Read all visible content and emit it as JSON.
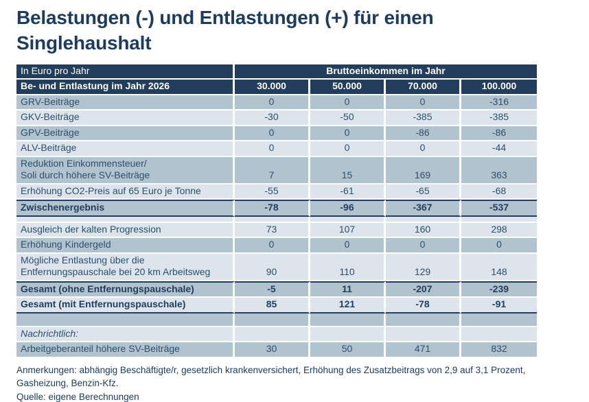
{
  "page": {
    "title": "Belastungen (-) und Entlastungen (+) für einen Singlehaushalt",
    "notes": "Anmerkungen: abhängig Beschäftigte/r, gesetzlich krankenversichert, Erhöhung des Zusatzbeitrags von 2,9 auf 3,1 Prozent, Gasheizung, Benzin-Kfz.",
    "source": "Quelle: eigene Berechnungen"
  },
  "colors": {
    "header_navy": "#223e5c",
    "row_dark": "#b2c3d0",
    "row_light": "#dde4ec",
    "title_text": "#1c3b5e",
    "body_text": "#2c4f6b"
  },
  "chart_data": {
    "type": "table",
    "unit_label": "In Euro pro Jahr",
    "group_header": "Bruttoeinkommen im Jahr",
    "row_header": "Be- und Entlastung im Jahr 2026",
    "columns": [
      "30.000",
      "50.000",
      "70.000",
      "100.000"
    ],
    "rows": [
      {
        "label": "GRV-Beiträge",
        "values": [
          "0",
          "0",
          "0",
          "-316"
        ],
        "shade": "dark"
      },
      {
        "label": "GKV-Beiträge",
        "values": [
          "-30",
          "-50",
          "-385",
          "-385"
        ],
        "shade": "light"
      },
      {
        "label": "GPV-Beiträge",
        "values": [
          "0",
          "0",
          "-86",
          "-86"
        ],
        "shade": "dark"
      },
      {
        "label": "ALV-Beiträge",
        "values": [
          "0",
          "0",
          "0",
          "-44"
        ],
        "shade": "light"
      },
      {
        "label": "Reduktion Einkommensteuer/\nSoli durch höhere SV-Beiträge",
        "values": [
          "7",
          "15",
          "169",
          "363"
        ],
        "shade": "dark"
      },
      {
        "label": "Erhöhung CO2-Preis auf 65 Euro je Tonne",
        "values": [
          "-55",
          "-61",
          "-65",
          "-68"
        ],
        "shade": "light"
      },
      {
        "label": "Zwischenergebnis",
        "values": [
          "-78",
          "-96",
          "-367",
          "-537"
        ],
        "shade": "dark",
        "bold": true,
        "border_top": true,
        "border_bottom": true
      },
      {
        "spacer": true,
        "shade": "light",
        "height": 9
      },
      {
        "label": "Ausgleich der kalten Progression",
        "values": [
          "73",
          "107",
          "160",
          "298"
        ],
        "shade": "light"
      },
      {
        "label": "Erhöhung Kindergeld",
        "values": [
          "0",
          "0",
          "0",
          "0"
        ],
        "shade": "dark"
      },
      {
        "label": "Mögliche Entlastung über die\nEntfernungspauschale bei 20 km Arbeitsweg",
        "values": [
          "90",
          "110",
          "129",
          "148"
        ],
        "shade": "light"
      },
      {
        "label": "Gesamt (ohne Entfernungspauschale)",
        "values": [
          "-5",
          "11",
          "-207",
          "-239"
        ],
        "shade": "dark",
        "bold": true,
        "border_top": true
      },
      {
        "label": "Gesamt (mit Entfernungspauschale)",
        "values": [
          "85",
          "121",
          "-78",
          "-91"
        ],
        "shade": "light",
        "bold": true,
        "border_bottom": true
      },
      {
        "spacer": true,
        "shade": "dark",
        "height": 20
      },
      {
        "label": "Nachrichtlich:",
        "values": [
          "",
          "",
          "",
          ""
        ],
        "shade": "light",
        "italic": true
      },
      {
        "label": "Arbeitgeberanteil höhere SV-Beiträge",
        "values": [
          "30",
          "50",
          "471",
          "832"
        ],
        "shade": "dark"
      }
    ]
  }
}
